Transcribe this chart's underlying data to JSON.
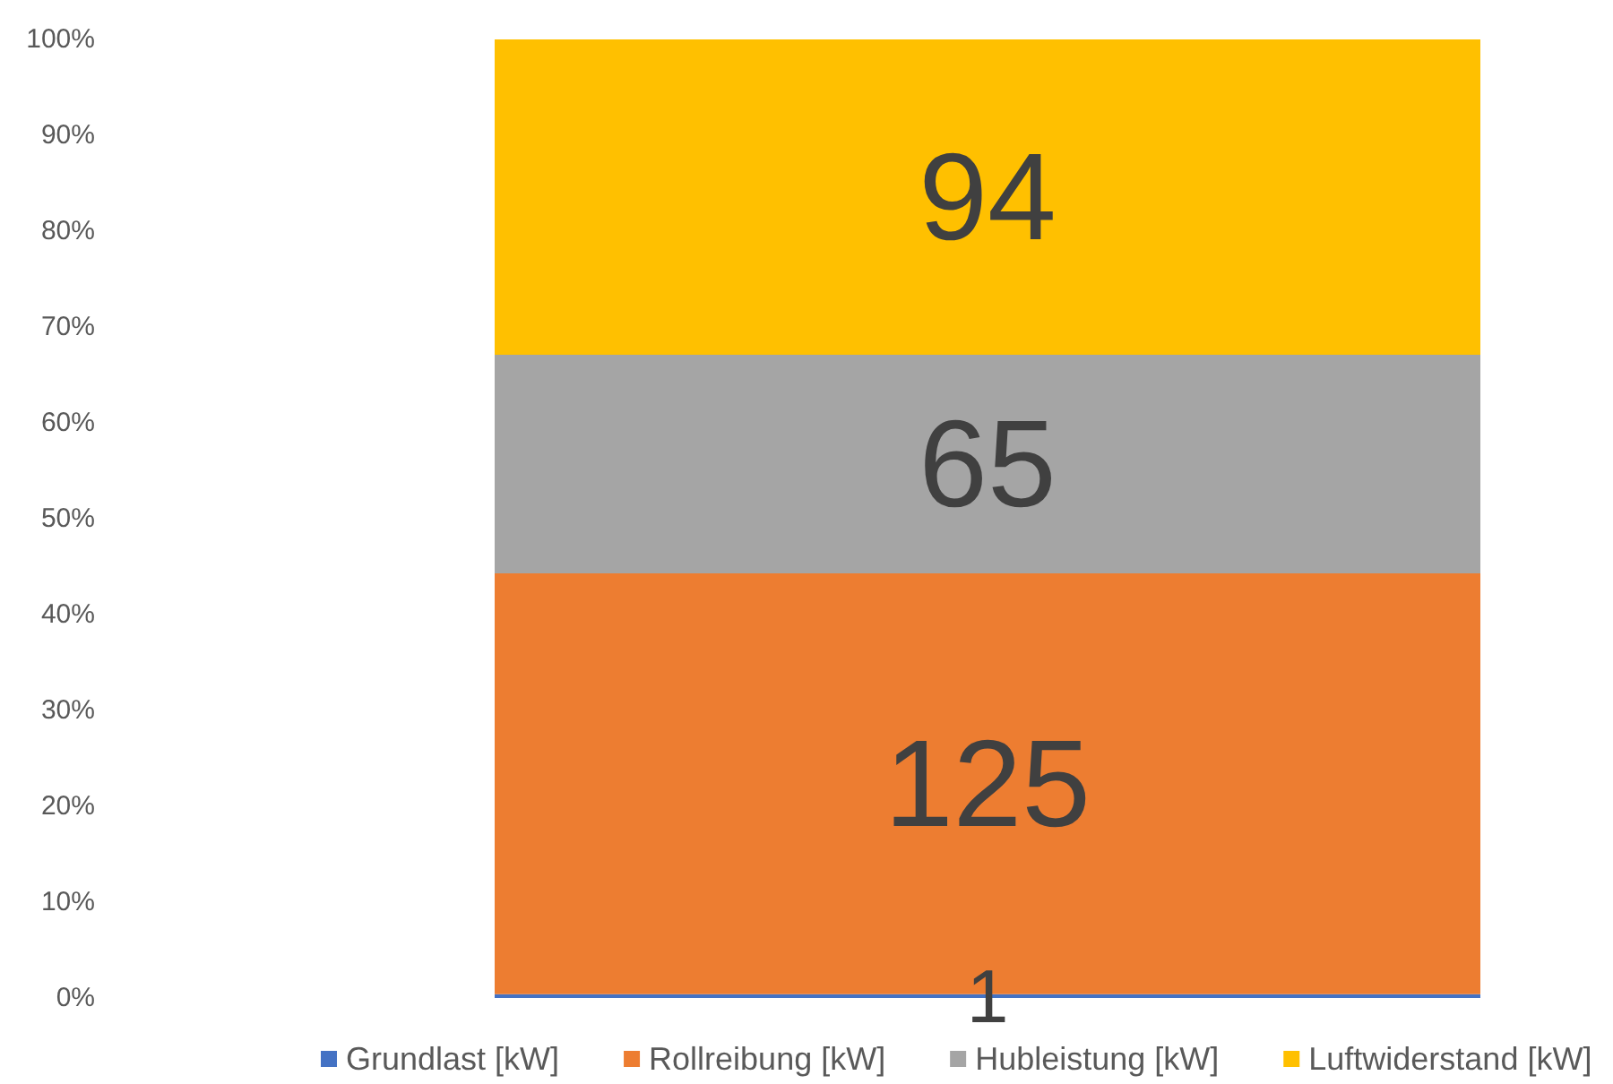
{
  "chart_data": {
    "type": "bar",
    "stacked": true,
    "categories": [
      null
    ],
    "series": [
      {
        "name": "Grundlast [kW]",
        "color": "#4472c4",
        "values": [
          0.4
        ]
      },
      {
        "name": "Rollreibung [kW]",
        "color": "#ed7d31",
        "values": [
          43.9
        ]
      },
      {
        "name": "Hubleistung [kW]",
        "color": "#a5a5a5",
        "values": [
          22.8
        ]
      },
      {
        "name": "Luftwiderstand [kW]",
        "color": "#ffc000",
        "values": [
          32.9
        ]
      }
    ],
    "annotations": [
      "1",
      "125",
      "65",
      "94"
    ],
    "ylim": [
      0,
      100
    ],
    "yticks": [
      {
        "value": 0,
        "label": "0%"
      },
      {
        "value": 10,
        "label": "10%"
      },
      {
        "value": 20,
        "label": "20%"
      },
      {
        "value": 30,
        "label": "30%"
      },
      {
        "value": 40,
        "label": "40%"
      },
      {
        "value": 50,
        "label": "50%"
      },
      {
        "value": 60,
        "label": "60%"
      },
      {
        "value": 70,
        "label": "70%"
      },
      {
        "value": 80,
        "label": "80%"
      },
      {
        "value": 90,
        "label": "90%"
      },
      {
        "value": 100,
        "label": "100%"
      }
    ],
    "grid": false,
    "legend": "bottom"
  }
}
